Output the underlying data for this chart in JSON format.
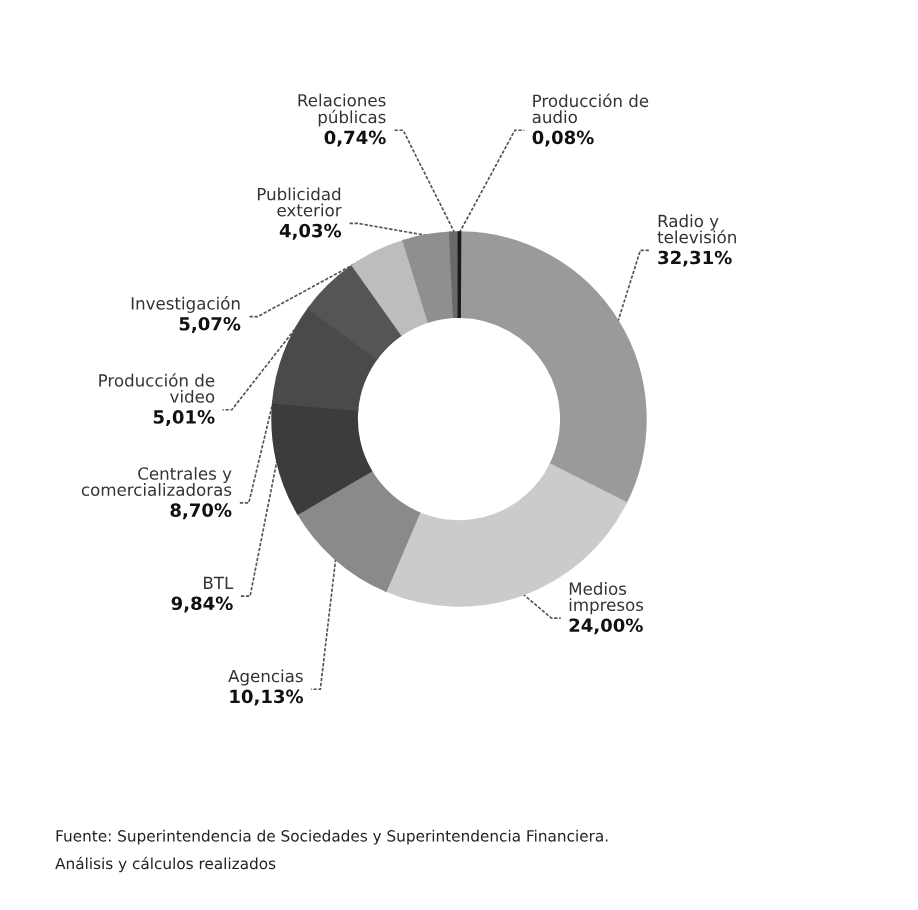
{
  "chart_data": {
    "type": "donut",
    "categories": [
      "Producción de audio",
      "Radio y televisión",
      "Medios impresos",
      "Agencias",
      "BTL",
      "Centrales y comercializadoras",
      "Producción de video",
      "Investigación",
      "Publicidad exterior",
      "Relaciones públicas"
    ],
    "values": [
      0.08,
      32.31,
      24.0,
      10.13,
      9.84,
      8.7,
      5.01,
      5.07,
      4.03,
      0.74
    ],
    "value_labels": [
      "0,08%",
      "32,31%",
      "24,00%",
      "10,13%",
      "9,84%",
      "8,70%",
      "5,01%",
      "5,07%",
      "4,03%",
      "0,74%"
    ],
    "colors": [
      "#1a1a1a",
      "#9a9a9a",
      "#cbcbcb",
      "#8a8a8a",
      "#3c3c3c",
      "#4a4a4a",
      "#555555",
      "#bdbdbd",
      "#8f8f8f",
      "#6a6a6a"
    ],
    "legend": false,
    "annotations": [
      "Fuente: Superintendencia de Sociedades y Superintendencia Financiera.",
      "Análisis y cálculos realizados"
    ]
  }
}
